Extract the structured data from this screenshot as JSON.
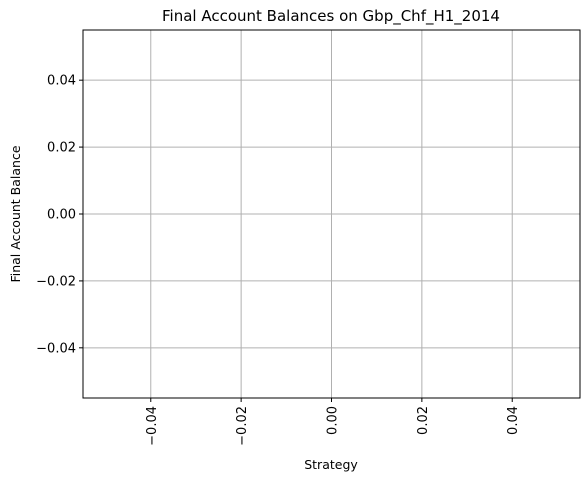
{
  "chart_data": {
    "type": "bar",
    "title": "Final Account Balances on Gbp_Chf_H1_2014",
    "xlabel": "Strategy",
    "ylabel": "Final Account Balance",
    "categories": [],
    "values": [],
    "xlim": [
      -0.055,
      0.055
    ],
    "ylim": [
      -0.055,
      0.055
    ],
    "x_ticks": [
      -0.04,
      -0.02,
      0.0,
      0.02,
      0.04
    ],
    "x_tick_labels": [
      "−0.04",
      "−0.02",
      "0.00",
      "0.02",
      "0.04"
    ],
    "x_tick_rotation": "vertical",
    "y_ticks": [
      -0.04,
      -0.02,
      0.0,
      0.02,
      0.04
    ],
    "y_tick_labels": [
      "−0.04",
      "−0.02",
      "0.00",
      "0.02",
      "0.04"
    ],
    "grid": true,
    "grid_color": "#b0b0b0",
    "axes_color": "#000000"
  }
}
